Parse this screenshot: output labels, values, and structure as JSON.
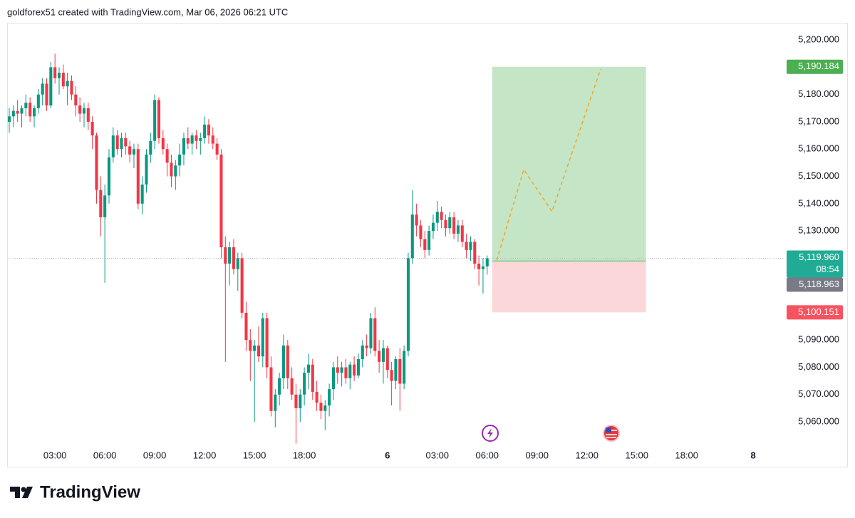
{
  "header": "goldforex51 created with TradingView.com, Mar 06, 2026 06:21 UTC",
  "footer": "TradingView",
  "chart_data": {
    "type": "candlestick",
    "up_color": "#089981",
    "down_color": "#f23645",
    "open": [
      5170,
      5172,
      5174,
      5173,
      5175,
      5177,
      5172,
      5175,
      5180,
      5184,
      5176,
      5190,
      5186,
      5188,
      5183,
      5185,
      5180,
      5176,
      5173,
      5175,
      5170,
      5165,
      5145,
      5135,
      5143,
      5157,
      5165,
      5160,
      5164,
      5161,
      5158,
      5160,
      5140,
      5147,
      5158,
      5163,
      5178,
      5164,
      5160,
      5155,
      5150,
      5154,
      5158,
      5164,
      5162,
      5165,
      5163,
      5164,
      5169,
      5165,
      5162,
      5158,
      5124,
      5118,
      5124,
      5116,
      5120,
      5100,
      5090,
      5086,
      5088,
      5084,
      5098,
      5080,
      5064,
      5070,
      5076,
      5088,
      5076,
      5070,
      5065,
      5070,
      5078,
      5081,
      5071,
      5067,
      5064,
      5066,
      5072,
      5080,
      5078,
      5080,
      5076,
      5081,
      5077,
      5083,
      5088,
      5087,
      5098,
      5086,
      5082,
      5087,
      5079,
      5075,
      5083,
      5074,
      5086,
      5120,
      5136,
      5132,
      5127,
      5123,
      5130,
      5133,
      5137,
      5134,
      5131,
      5135,
      5129,
      5132,
      5126,
      5123,
      5126,
      5118,
      5116,
      5117
    ],
    "high": [
      5175,
      5176,
      5178,
      5176,
      5180,
      5179,
      5176,
      5182,
      5186,
      5186,
      5192,
      5195,
      5190,
      5191,
      5188,
      5187,
      5183,
      5179,
      5177,
      5177,
      5172,
      5166,
      5150,
      5147,
      5160,
      5168,
      5167,
      5166,
      5166,
      5163,
      5162,
      5162,
      5150,
      5160,
      5166,
      5180,
      5179,
      5167,
      5162,
      5158,
      5156,
      5162,
      5166,
      5168,
      5166,
      5167,
      5166,
      5172,
      5171,
      5168,
      5164,
      5160,
      5128,
      5126,
      5127,
      5122,
      5122,
      5104,
      5094,
      5090,
      5095,
      5100,
      5100,
      5084,
      5072,
      5078,
      5092,
      5090,
      5080,
      5074,
      5072,
      5080,
      5085,
      5083,
      5075,
      5070,
      5068,
      5074,
      5082,
      5084,
      5082,
      5083,
      5082,
      5084,
      5085,
      5090,
      5092,
      5100,
      5102,
      5090,
      5090,
      5088,
      5082,
      5084,
      5087,
      5088,
      5122,
      5145,
      5140,
      5134,
      5130,
      5132,
      5136,
      5141,
      5139,
      5136,
      5137,
      5137,
      5134,
      5134,
      5129,
      5128,
      5127,
      5121,
      5120,
      5121
    ],
    "low": [
      5166,
      5168,
      5170,
      5168,
      5172,
      5170,
      5168,
      5173,
      5176,
      5174,
      5175,
      5184,
      5180,
      5182,
      5176,
      5178,
      5172,
      5170,
      5168,
      5167,
      5160,
      5140,
      5128,
      5111,
      5140,
      5155,
      5158,
      5157,
      5158,
      5155,
      5153,
      5138,
      5136,
      5144,
      5155,
      5160,
      5162,
      5158,
      5150,
      5146,
      5145,
      5150,
      5154,
      5160,
      5158,
      5160,
      5158,
      5162,
      5162,
      5160,
      5156,
      5120,
      5082,
      5110,
      5114,
      5108,
      5098,
      5086,
      5075,
      5060,
      5082,
      5080,
      5076,
      5062,
      5058,
      5066,
      5072,
      5072,
      5068,
      5052,
      5060,
      5066,
      5072,
      5068,
      5064,
      5061,
      5057,
      5062,
      5068,
      5074,
      5073,
      5074,
      5072,
      5075,
      5076,
      5080,
      5084,
      5085,
      5084,
      5078,
      5074,
      5076,
      5066,
      5072,
      5064,
      5072,
      5084,
      5118,
      5128,
      5124,
      5120,
      5121,
      5127,
      5130,
      5131,
      5128,
      5129,
      5127,
      5126,
      5124,
      5120,
      5119,
      5116,
      5110,
      5107,
      5114
    ],
    "close": [
      5172,
      5174,
      5173,
      5175,
      5177,
      5172,
      5175,
      5180,
      5184,
      5176,
      5190,
      5186,
      5188,
      5183,
      5185,
      5180,
      5176,
      5173,
      5175,
      5170,
      5165,
      5145,
      5135,
      5143,
      5157,
      5165,
      5160,
      5164,
      5161,
      5158,
      5160,
      5140,
      5147,
      5158,
      5163,
      5178,
      5164,
      5160,
      5155,
      5150,
      5154,
      5158,
      5164,
      5162,
      5165,
      5163,
      5164,
      5169,
      5165,
      5162,
      5158,
      5124,
      5118,
      5124,
      5116,
      5120,
      5100,
      5090,
      5086,
      5088,
      5084,
      5098,
      5080,
      5064,
      5070,
      5076,
      5088,
      5076,
      5070,
      5065,
      5070,
      5078,
      5081,
      5071,
      5067,
      5064,
      5066,
      5072,
      5080,
      5078,
      5080,
      5076,
      5081,
      5077,
      5083,
      5088,
      5087,
      5098,
      5086,
      5082,
      5087,
      5079,
      5075,
      5083,
      5074,
      5086,
      5120,
      5136,
      5132,
      5127,
      5123,
      5130,
      5133,
      5137,
      5134,
      5131,
      5135,
      5129,
      5132,
      5126,
      5123,
      5126,
      5118,
      5116,
      5117,
      5119.96
    ],
    "xlim": [
      -0.17,
      185.5
    ],
    "xticks": [
      {
        "value": 11,
        "label": "03:00"
      },
      {
        "value": 23,
        "label": "06:00"
      },
      {
        "value": 35,
        "label": "09:00"
      },
      {
        "value": 47,
        "label": "12:00"
      },
      {
        "value": 59,
        "label": "15:00"
      },
      {
        "value": 71,
        "label": "18:00"
      },
      {
        "value": 91,
        "label": "6"
      },
      {
        "value": 103,
        "label": "03:00"
      },
      {
        "value": 115,
        "label": "06:00"
      },
      {
        "value": 127,
        "label": "09:00"
      },
      {
        "value": 139,
        "label": "12:00"
      },
      {
        "value": 151,
        "label": "15:00"
      },
      {
        "value": 163,
        "label": "18:00"
      },
      {
        "value": 179,
        "label": "8"
      }
    ],
    "ylim": [
      5051.4,
      5206.3
    ],
    "yticks": [
      {
        "value": 5060,
        "label": "5,060.000"
      },
      {
        "value": 5070,
        "label": "5,070.000"
      },
      {
        "value": 5080,
        "label": "5,080.000"
      },
      {
        "value": 5090,
        "label": "5,090.000"
      },
      {
        "value": 5100,
        "label": "5,100.000"
      },
      {
        "value": 5110,
        "label": "5,110.000"
      },
      {
        "value": 5120,
        "label": "5,120.000"
      },
      {
        "value": 5130,
        "label": "5,130.000"
      },
      {
        "value": 5140,
        "label": "5,140.000"
      },
      {
        "value": 5150,
        "label": "5,150.000"
      },
      {
        "value": 5160,
        "label": "5,160.000"
      },
      {
        "value": 5170,
        "label": "5,170.000"
      },
      {
        "value": 5180,
        "label": "5,180.000"
      },
      {
        "value": 5190,
        "label": "5,190.000"
      },
      {
        "value": 5200,
        "label": "5,200.000"
      }
    ],
    "current_price": {
      "value": 5119.96,
      "label": "5,119.960",
      "countdown": "08:54"
    },
    "position": {
      "x_start": 116.2,
      "x_end": 153.2,
      "take_profit": {
        "value": 5190.184,
        "label": "5,190.184"
      },
      "entry": {
        "value": 5118.963,
        "label": "5,118.963"
      },
      "stop_loss": {
        "value": 5100.151,
        "label": "5,100.151"
      }
    },
    "projection": {
      "x": [
        117.3,
        123.8,
        130.6,
        142.3
      ],
      "y": [
        5119.3,
        5152.5,
        5137.1,
        5189.3
      ],
      "color": "#f5a623"
    }
  }
}
